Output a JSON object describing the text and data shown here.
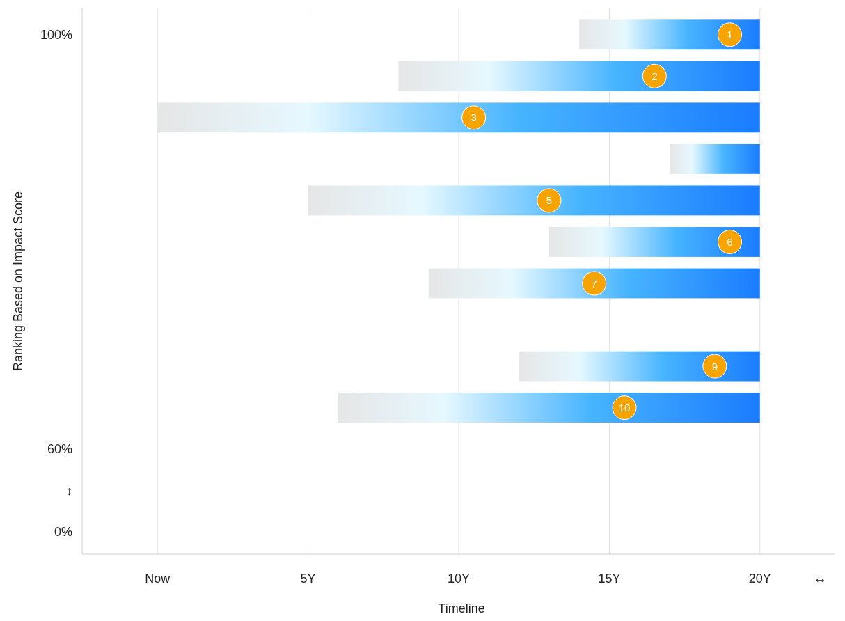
{
  "chart_data": {
    "type": "bar",
    "orientation": "horizontal",
    "xlabel": "Timeline",
    "ylabel": "Ranking Based on Impact Score",
    "categories": [
      "100%",
      null,
      null,
      null,
      null,
      null,
      null,
      null,
      null,
      null,
      "60%",
      "↕",
      "0%"
    ],
    "base": [
      14,
      8,
      0,
      17,
      5,
      13,
      9,
      null,
      12,
      6,
      null,
      null,
      null
    ],
    "values": [
      6,
      12,
      20,
      3,
      15,
      7,
      11,
      null,
      8,
      14,
      null,
      null,
      null
    ],
    "color": "#1a7cff",
    "xlim": [
      -2.5,
      22.5
    ],
    "xticks": [
      {
        "value": 0,
        "label": "Now"
      },
      {
        "value": 5,
        "label": "5Y"
      },
      {
        "value": 10,
        "label": "10Y"
      },
      {
        "value": 15,
        "label": "15Y"
      },
      {
        "value": 20,
        "label": "20Y"
      }
    ],
    "grid": "x",
    "annotations": [
      {
        "text": "1",
        "x": 19
      },
      {
        "text": "2",
        "x": 16.5
      },
      {
        "text": "3",
        "x": 10.5
      },
      {
        "text": "5",
        "x": 13
      },
      {
        "text": "6",
        "x": 19
      },
      {
        "text": "7",
        "x": 14.5
      },
      {
        "text": "9",
        "x": 18.5
      },
      {
        "text": "10",
        "x": 15.5
      },
      "↔"
    ]
  }
}
